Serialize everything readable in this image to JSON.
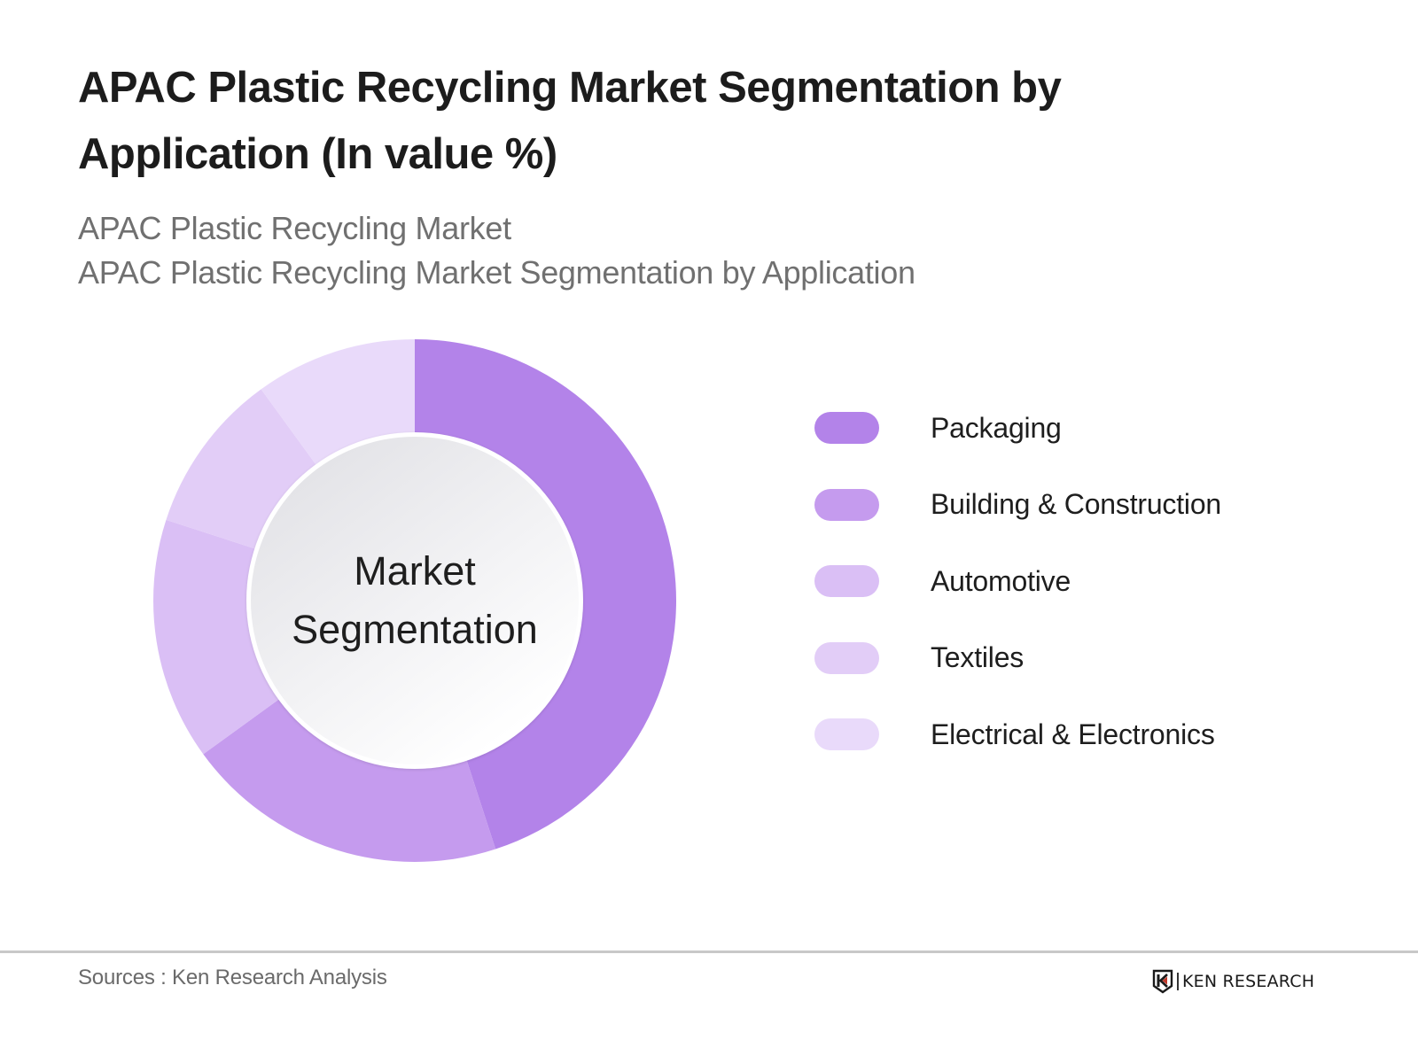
{
  "header": {
    "title_line1": "APAC Plastic Recycling Market Segmentation by",
    "title_line2": "Application (In value %)",
    "subtitle_line1": "APAC Plastic Recycling Market",
    "subtitle_line2": "APAC Plastic Recycling Market Segmentation by Application"
  },
  "chart": {
    "center_label_line1": "Market",
    "center_label_line2": "Segmentation"
  },
  "legend": {
    "items": [
      {
        "label": "Packaging",
        "color": "#b383e9"
      },
      {
        "label": "Building & Construction",
        "color": "#c59bee"
      },
      {
        "label": "Automotive",
        "color": "#dabff5"
      },
      {
        "label": "Textiles",
        "color": "#e2cdf7"
      },
      {
        "label": "Electrical & Electronics",
        "color": "#e9dafa"
      }
    ]
  },
  "footer": {
    "sources": "Sources : Ken Research Analysis",
    "logo_text": "KEN RESEARCH",
    "logo_icon": "ken-research-logo-icon"
  },
  "chart_data": {
    "type": "pie",
    "subtype": "donut",
    "title": "APAC Plastic Recycling Market Segmentation by Application (In value %)",
    "subtitle": "APAC Plastic Recycling Market — APAC Plastic Recycling Market Segmentation by Application",
    "center_text": "Market Segmentation",
    "categories": [
      "Packaging",
      "Building & Construction",
      "Automotive",
      "Textiles",
      "Electrical & Electronics"
    ],
    "values": [
      45,
      20,
      15,
      10,
      10
    ],
    "colors": [
      "#b383e9",
      "#c59bee",
      "#dabff5",
      "#e2cdf7",
      "#e9dafa"
    ],
    "unit": "%",
    "start_angle_deg": 0,
    "direction": "clockwise",
    "legend_position": "right",
    "data_labels": false,
    "source": "Sources : Ken Research Analysis"
  }
}
